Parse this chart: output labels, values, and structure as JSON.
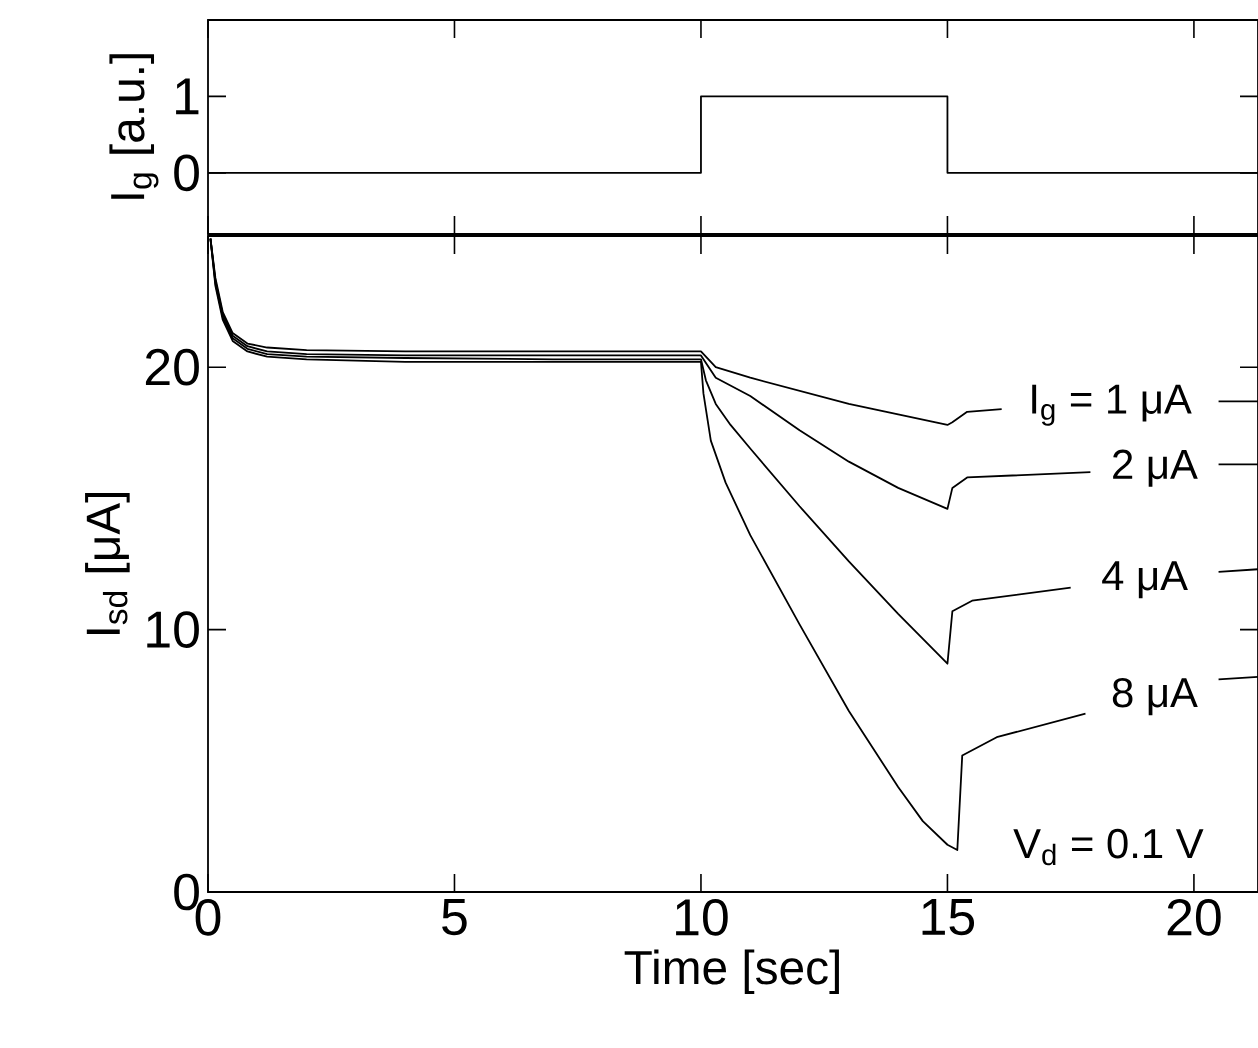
{
  "chart_data": [
    {
      "type": "line",
      "ylabel": "I$_{g}$ [a.u.]",
      "xlim": [
        0,
        21.3
      ],
      "xticks": [
        0,
        5,
        10,
        15,
        20
      ],
      "ylim": [
        -0.8,
        2
      ],
      "yticks": [
        0,
        1
      ],
      "tick_labels": "y",
      "series": [
        {
          "color": "#000000",
          "x": [
            0,
            10,
            10,
            15,
            15,
            21.3
          ],
          "values": [
            0,
            0,
            1,
            1,
            0,
            0
          ]
        }
      ]
    },
    {
      "type": "line",
      "xlabel": "Time [sec]",
      "ylabel": "I$_{sd}$ [μA]",
      "xlim": [
        0,
        21.3
      ],
      "xticks": [
        0,
        5,
        10,
        15,
        20
      ],
      "ylim": [
        0,
        25
      ],
      "yticks": [
        0,
        10,
        20
      ],
      "annotations": [
        "V$_{d}$ = 0.1 V"
      ],
      "series": [
        {
          "name": "I$_{g}$ = 1 μA",
          "color": "#000000",
          "x": [
            0.05,
            0.15,
            0.3,
            0.5,
            0.8,
            1.2,
            2,
            4,
            7,
            10,
            10.3,
            11,
            12,
            13,
            14,
            15,
            15.1,
            15.4,
            16.1,
            18.3,
            20.5,
            21.3
          ],
          "values": [
            24.9,
            23.4,
            22.1,
            21.3,
            20.9,
            20.75,
            20.65,
            20.6,
            20.6,
            20.6,
            20.0,
            19.6,
            19.1,
            18.6,
            18.2,
            17.8,
            17.9,
            18.3,
            18.4,
            null,
            18.7,
            18.7
          ]
        },
        {
          "name": "2 μA",
          "color": "#000000",
          "x": [
            0.05,
            0.15,
            0.3,
            0.5,
            0.8,
            1.2,
            2,
            4,
            7,
            10,
            10.3,
            11,
            12,
            13,
            14,
            15,
            15.1,
            15.4,
            17.9,
            19.2,
            20.5,
            21.3
          ],
          "values": [
            24.9,
            23.3,
            22.0,
            21.2,
            20.8,
            20.6,
            20.5,
            20.45,
            20.45,
            20.45,
            19.6,
            18.9,
            17.6,
            16.4,
            15.4,
            14.6,
            15.4,
            15.8,
            16.0,
            null,
            16.3,
            16.3
          ]
        },
        {
          "name": "4 μA",
          "color": "#000000",
          "x": [
            0.05,
            0.15,
            0.3,
            0.5,
            0.8,
            1.2,
            2,
            4,
            7,
            10,
            10.1,
            10.3,
            10.6,
            11,
            12,
            13,
            14,
            15,
            15.1,
            15.5,
            17.5,
            19,
            20.5,
            21.3
          ],
          "values": [
            24.9,
            23.2,
            21.9,
            21.1,
            20.7,
            20.5,
            20.4,
            20.35,
            20.3,
            20.3,
            19.5,
            18.6,
            17.8,
            16.9,
            14.7,
            12.6,
            10.6,
            8.7,
            10.7,
            11.1,
            11.6,
            null,
            12.2,
            12.3
          ]
        },
        {
          "name": "8 μA",
          "color": "#000000",
          "x": [
            0.05,
            0.15,
            0.3,
            0.5,
            0.8,
            1.2,
            2,
            4,
            7,
            10,
            10.05,
            10.2,
            10.5,
            11,
            12,
            13,
            14,
            14.5,
            15,
            15.2,
            15.3,
            16,
            17.8,
            19.2,
            20.5,
            21.3
          ],
          "values": [
            24.9,
            23.1,
            21.8,
            21.0,
            20.6,
            20.4,
            20.3,
            20.2,
            20.2,
            20.2,
            19.0,
            17.2,
            15.6,
            13.6,
            10.2,
            6.9,
            4.0,
            2.7,
            1.8,
            1.6,
            5.2,
            5.9,
            6.8,
            null,
            8.1,
            8.2
          ]
        }
      ]
    }
  ]
}
